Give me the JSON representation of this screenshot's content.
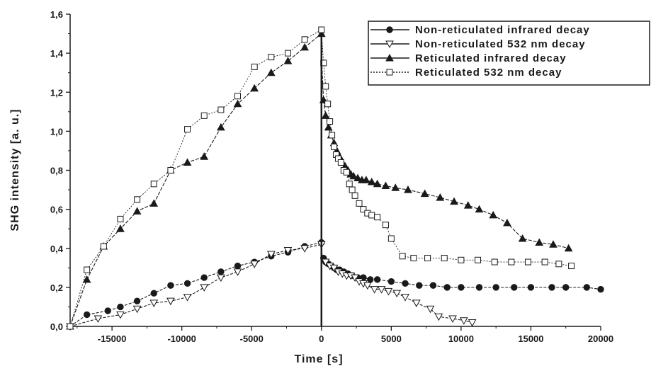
{
  "chart_data": {
    "type": "line",
    "xlabel": "Time [s]",
    "ylabel": "SHG intensity [a. u.]",
    "xlim": [
      -18000,
      20000
    ],
    "ylim": [
      0,
      1.6
    ],
    "xticks": [
      -15000,
      -10000,
      -5000,
      0,
      5000,
      10000,
      15000,
      20000
    ],
    "xtick_labels": [
      "-15000",
      "-10000",
      "-5000",
      "0",
      "5000",
      "10000",
      "15000",
      "20000"
    ],
    "yticks": [
      0,
      0.2,
      0.4,
      0.6,
      0.8,
      1.0,
      1.2,
      1.4,
      1.6
    ],
    "ytick_labels": [
      "0,0",
      "0,2",
      "0,4",
      "0,6",
      "0,8",
      "1,0",
      "1,2",
      "1,4",
      "1,6"
    ],
    "legend_position": "top-right",
    "series": [
      {
        "name": "Non-reticulated infrared decay",
        "marker": "filled-circle",
        "color": "#1a1a1a",
        "x": [
          -18000,
          -16800,
          -15300,
          -14400,
          -13200,
          -12000,
          -10800,
          -9600,
          -8400,
          -7200,
          -6000,
          -4800,
          -3600,
          -2400,
          -1200,
          0,
          0,
          150,
          300,
          500,
          700,
          900,
          1100,
          1300,
          1600,
          1900,
          2200,
          2600,
          3000,
          3500,
          4000,
          5000,
          6000,
          7000,
          8000,
          9000,
          10000,
          11300,
          12500,
          13800,
          15000,
          16500,
          17500,
          19000,
          20000
        ],
        "y": [
          0,
          0.06,
          0.08,
          0.1,
          0.13,
          0.17,
          0.21,
          0.22,
          0.25,
          0.28,
          0.31,
          0.33,
          0.36,
          0.38,
          0.41,
          0.43,
          0.38,
          0.35,
          0.33,
          0.32,
          0.31,
          0.3,
          0.29,
          0.29,
          0.28,
          0.27,
          0.26,
          0.25,
          0.25,
          0.24,
          0.24,
          0.23,
          0.22,
          0.21,
          0.21,
          0.2,
          0.2,
          0.2,
          0.2,
          0.2,
          0.2,
          0.2,
          0.2,
          0.2,
          0.19
        ]
      },
      {
        "name": "Non-reticulated 532 nm decay",
        "marker": "open-triangle-down",
        "color": "#1a1a1a",
        "x": [
          -18000,
          -16000,
          -14400,
          -13200,
          -12000,
          -10800,
          -9600,
          -8400,
          -7200,
          -6000,
          -4800,
          -3600,
          -2400,
          -1200,
          0,
          0,
          300,
          600,
          900,
          1200,
          1500,
          1800,
          2100,
          2400,
          2700,
          3000,
          3300,
          3800,
          4300,
          4800,
          5400,
          6000,
          6800,
          7800,
          8400,
          9400,
          10200,
          10800
        ],
        "y": [
          0,
          0.04,
          0.06,
          0.09,
          0.12,
          0.13,
          0.15,
          0.2,
          0.25,
          0.28,
          0.32,
          0.37,
          0.39,
          0.4,
          0.42,
          0.37,
          0.33,
          0.31,
          0.3,
          0.28,
          0.27,
          0.26,
          0.26,
          0.25,
          0.23,
          0.22,
          0.21,
          0.19,
          0.19,
          0.18,
          0.17,
          0.15,
          0.12,
          0.09,
          0.05,
          0.04,
          0.03,
          0.02
        ]
      },
      {
        "name": "Reticulated infrared decay",
        "marker": "filled-triangle-up",
        "color": "#1a1a1a",
        "x": [
          -18000,
          -16800,
          -15600,
          -14400,
          -13200,
          -12000,
          -10800,
          -9600,
          -8400,
          -7200,
          -6000,
          -4800,
          -3600,
          -2400,
          -1200,
          0,
          0,
          150,
          300,
          500,
          700,
          900,
          1100,
          1300,
          1500,
          1700,
          1900,
          2100,
          2300,
          2600,
          2900,
          3200,
          3600,
          4000,
          4600,
          5300,
          6200,
          7400,
          8500,
          9500,
          10500,
          11300,
          12300,
          13300,
          14400,
          15600,
          16600,
          17700
        ],
        "y": [
          0,
          0.24,
          0.41,
          0.5,
          0.59,
          0.63,
          0.8,
          0.84,
          0.87,
          1.02,
          1.14,
          1.22,
          1.3,
          1.36,
          1.43,
          1.5,
          1.39,
          1.16,
          1.08,
          1.02,
          0.98,
          0.94,
          0.9,
          0.87,
          0.84,
          0.82,
          0.8,
          0.78,
          0.77,
          0.76,
          0.75,
          0.75,
          0.74,
          0.73,
          0.72,
          0.71,
          0.7,
          0.68,
          0.66,
          0.64,
          0.62,
          0.6,
          0.57,
          0.53,
          0.45,
          0.43,
          0.42,
          0.4
        ]
      },
      {
        "name": "Reticulated 532 nm decay",
        "marker": "open-square",
        "color": "#1a1a1a",
        "x": [
          -18000,
          -16800,
          -15600,
          -14400,
          -13200,
          -12000,
          -10800,
          -9600,
          -8400,
          -7200,
          -6000,
          -4800,
          -3600,
          -2400,
          -1200,
          0,
          0,
          150,
          300,
          450,
          600,
          750,
          900,
          1050,
          1200,
          1400,
          1600,
          1800,
          2000,
          2200,
          2400,
          2700,
          3000,
          3300,
          3600,
          4000,
          4600,
          5000,
          5800,
          6600,
          7600,
          8800,
          10000,
          11200,
          12400,
          13600,
          14800,
          16000,
          17000,
          17900
        ],
        "y": [
          0,
          0.29,
          0.41,
          0.55,
          0.65,
          0.73,
          0.8,
          1.01,
          1.08,
          1.11,
          1.18,
          1.33,
          1.38,
          1.4,
          1.47,
          1.52,
          1.51,
          1.35,
          1.23,
          1.14,
          1.05,
          0.98,
          0.92,
          0.88,
          0.86,
          0.84,
          0.8,
          0.79,
          0.73,
          0.7,
          0.67,
          0.63,
          0.6,
          0.58,
          0.57,
          0.56,
          0.52,
          0.45,
          0.36,
          0.35,
          0.35,
          0.35,
          0.34,
          0.34,
          0.33,
          0.33,
          0.33,
          0.33,
          0.32,
          0.31
        ]
      }
    ]
  }
}
